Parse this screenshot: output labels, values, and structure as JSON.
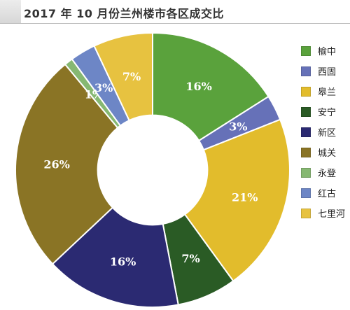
{
  "header": {
    "title": "2017 年 10 月份兰州楼市各区成交比"
  },
  "chart_data": {
    "type": "pie",
    "title": "2017 年 10 月份兰州楼市各区成交比",
    "start_angle_deg": 0,
    "direction": "clockwise",
    "inner_radius_ratio": 0.4,
    "slices": [
      {
        "label": "榆中",
        "value": 16,
        "display": "16%",
        "color": "#5aa23c"
      },
      {
        "label": "西固",
        "value": 3,
        "display": "3%",
        "color": "#6671b8"
      },
      {
        "label": "皋兰",
        "value": 21,
        "display": "21%",
        "color": "#e2bc2c"
      },
      {
        "label": "安宁",
        "value": 7,
        "display": "7%",
        "color": "#2a5b25"
      },
      {
        "label": "新区",
        "value": 16,
        "display": "16%",
        "color": "#2b2a72"
      },
      {
        "label": "城关",
        "value": 26,
        "display": "26%",
        "color": "#8a7425"
      },
      {
        "label": "永登",
        "value": 1,
        "display": "1%",
        "color": "#86b872"
      },
      {
        "label": "红古",
        "value": 3,
        "display": "3%",
        "color": "#6d86c6"
      },
      {
        "label": "七里河",
        "value": 7,
        "display": "7%",
        "color": "#e7c240"
      }
    ],
    "legend_position": "right"
  }
}
